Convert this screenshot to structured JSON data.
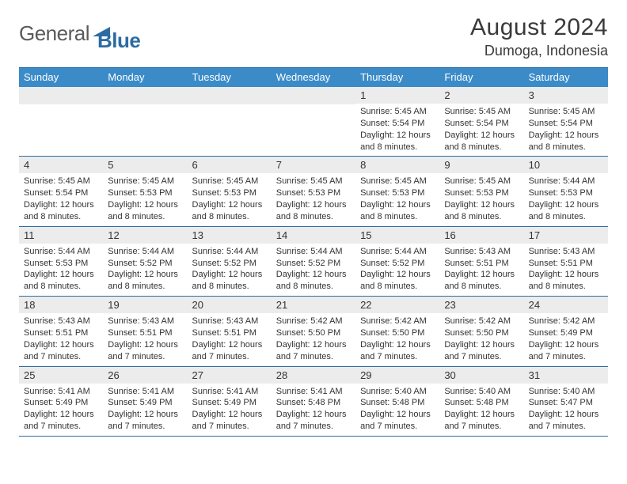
{
  "logo": {
    "text1": "General",
    "text2": "Blue",
    "icon_color": "#2b6ca3"
  },
  "title": {
    "month": "August 2024",
    "location": "Dumoga, Indonesia"
  },
  "colors": {
    "header_bg": "#3b8bc8",
    "border": "#2b6ca3",
    "daynum_bg": "#ececec",
    "text": "#333333",
    "bg": "#ffffff"
  },
  "fonts": {
    "title_size": 30,
    "location_size": 18,
    "dow_size": 13,
    "daynum_size": 13,
    "body_size": 11
  },
  "day_names": [
    "Sunday",
    "Monday",
    "Tuesday",
    "Wednesday",
    "Thursday",
    "Friday",
    "Saturday"
  ],
  "weeks": [
    [
      {
        "num": "",
        "sunrise": "",
        "sunset": "",
        "daylight": ""
      },
      {
        "num": "",
        "sunrise": "",
        "sunset": "",
        "daylight": ""
      },
      {
        "num": "",
        "sunrise": "",
        "sunset": "",
        "daylight": ""
      },
      {
        "num": "",
        "sunrise": "",
        "sunset": "",
        "daylight": ""
      },
      {
        "num": "1",
        "sunrise": "Sunrise: 5:45 AM",
        "sunset": "Sunset: 5:54 PM",
        "daylight": "Daylight: 12 hours and 8 minutes."
      },
      {
        "num": "2",
        "sunrise": "Sunrise: 5:45 AM",
        "sunset": "Sunset: 5:54 PM",
        "daylight": "Daylight: 12 hours and 8 minutes."
      },
      {
        "num": "3",
        "sunrise": "Sunrise: 5:45 AM",
        "sunset": "Sunset: 5:54 PM",
        "daylight": "Daylight: 12 hours and 8 minutes."
      }
    ],
    [
      {
        "num": "4",
        "sunrise": "Sunrise: 5:45 AM",
        "sunset": "Sunset: 5:54 PM",
        "daylight": "Daylight: 12 hours and 8 minutes."
      },
      {
        "num": "5",
        "sunrise": "Sunrise: 5:45 AM",
        "sunset": "Sunset: 5:53 PM",
        "daylight": "Daylight: 12 hours and 8 minutes."
      },
      {
        "num": "6",
        "sunrise": "Sunrise: 5:45 AM",
        "sunset": "Sunset: 5:53 PM",
        "daylight": "Daylight: 12 hours and 8 minutes."
      },
      {
        "num": "7",
        "sunrise": "Sunrise: 5:45 AM",
        "sunset": "Sunset: 5:53 PM",
        "daylight": "Daylight: 12 hours and 8 minutes."
      },
      {
        "num": "8",
        "sunrise": "Sunrise: 5:45 AM",
        "sunset": "Sunset: 5:53 PM",
        "daylight": "Daylight: 12 hours and 8 minutes."
      },
      {
        "num": "9",
        "sunrise": "Sunrise: 5:45 AM",
        "sunset": "Sunset: 5:53 PM",
        "daylight": "Daylight: 12 hours and 8 minutes."
      },
      {
        "num": "10",
        "sunrise": "Sunrise: 5:44 AM",
        "sunset": "Sunset: 5:53 PM",
        "daylight": "Daylight: 12 hours and 8 minutes."
      }
    ],
    [
      {
        "num": "11",
        "sunrise": "Sunrise: 5:44 AM",
        "sunset": "Sunset: 5:53 PM",
        "daylight": "Daylight: 12 hours and 8 minutes."
      },
      {
        "num": "12",
        "sunrise": "Sunrise: 5:44 AM",
        "sunset": "Sunset: 5:52 PM",
        "daylight": "Daylight: 12 hours and 8 minutes."
      },
      {
        "num": "13",
        "sunrise": "Sunrise: 5:44 AM",
        "sunset": "Sunset: 5:52 PM",
        "daylight": "Daylight: 12 hours and 8 minutes."
      },
      {
        "num": "14",
        "sunrise": "Sunrise: 5:44 AM",
        "sunset": "Sunset: 5:52 PM",
        "daylight": "Daylight: 12 hours and 8 minutes."
      },
      {
        "num": "15",
        "sunrise": "Sunrise: 5:44 AM",
        "sunset": "Sunset: 5:52 PM",
        "daylight": "Daylight: 12 hours and 8 minutes."
      },
      {
        "num": "16",
        "sunrise": "Sunrise: 5:43 AM",
        "sunset": "Sunset: 5:51 PM",
        "daylight": "Daylight: 12 hours and 8 minutes."
      },
      {
        "num": "17",
        "sunrise": "Sunrise: 5:43 AM",
        "sunset": "Sunset: 5:51 PM",
        "daylight": "Daylight: 12 hours and 8 minutes."
      }
    ],
    [
      {
        "num": "18",
        "sunrise": "Sunrise: 5:43 AM",
        "sunset": "Sunset: 5:51 PM",
        "daylight": "Daylight: 12 hours and 7 minutes."
      },
      {
        "num": "19",
        "sunrise": "Sunrise: 5:43 AM",
        "sunset": "Sunset: 5:51 PM",
        "daylight": "Daylight: 12 hours and 7 minutes."
      },
      {
        "num": "20",
        "sunrise": "Sunrise: 5:43 AM",
        "sunset": "Sunset: 5:51 PM",
        "daylight": "Daylight: 12 hours and 7 minutes."
      },
      {
        "num": "21",
        "sunrise": "Sunrise: 5:42 AM",
        "sunset": "Sunset: 5:50 PM",
        "daylight": "Daylight: 12 hours and 7 minutes."
      },
      {
        "num": "22",
        "sunrise": "Sunrise: 5:42 AM",
        "sunset": "Sunset: 5:50 PM",
        "daylight": "Daylight: 12 hours and 7 minutes."
      },
      {
        "num": "23",
        "sunrise": "Sunrise: 5:42 AM",
        "sunset": "Sunset: 5:50 PM",
        "daylight": "Daylight: 12 hours and 7 minutes."
      },
      {
        "num": "24",
        "sunrise": "Sunrise: 5:42 AM",
        "sunset": "Sunset: 5:49 PM",
        "daylight": "Daylight: 12 hours and 7 minutes."
      }
    ],
    [
      {
        "num": "25",
        "sunrise": "Sunrise: 5:41 AM",
        "sunset": "Sunset: 5:49 PM",
        "daylight": "Daylight: 12 hours and 7 minutes."
      },
      {
        "num": "26",
        "sunrise": "Sunrise: 5:41 AM",
        "sunset": "Sunset: 5:49 PM",
        "daylight": "Daylight: 12 hours and 7 minutes."
      },
      {
        "num": "27",
        "sunrise": "Sunrise: 5:41 AM",
        "sunset": "Sunset: 5:49 PM",
        "daylight": "Daylight: 12 hours and 7 minutes."
      },
      {
        "num": "28",
        "sunrise": "Sunrise: 5:41 AM",
        "sunset": "Sunset: 5:48 PM",
        "daylight": "Daylight: 12 hours and 7 minutes."
      },
      {
        "num": "29",
        "sunrise": "Sunrise: 5:40 AM",
        "sunset": "Sunset: 5:48 PM",
        "daylight": "Daylight: 12 hours and 7 minutes."
      },
      {
        "num": "30",
        "sunrise": "Sunrise: 5:40 AM",
        "sunset": "Sunset: 5:48 PM",
        "daylight": "Daylight: 12 hours and 7 minutes."
      },
      {
        "num": "31",
        "sunrise": "Sunrise: 5:40 AM",
        "sunset": "Sunset: 5:47 PM",
        "daylight": "Daylight: 12 hours and 7 minutes."
      }
    ]
  ]
}
